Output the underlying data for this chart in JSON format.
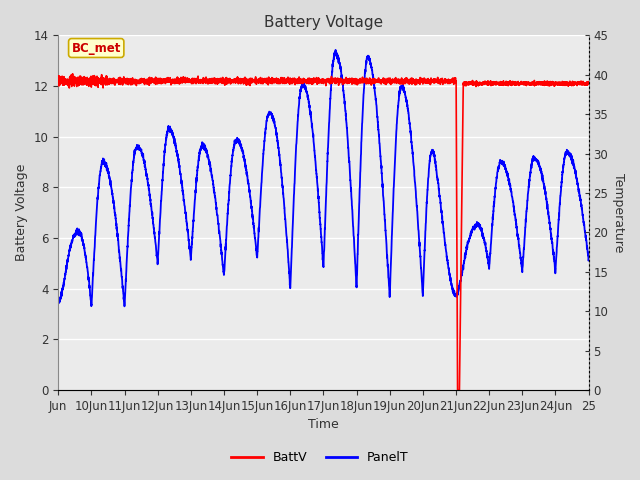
{
  "title": "Battery Voltage",
  "xlabel": "Time",
  "ylabel_left": "Battery Voltage",
  "ylabel_right": "Temperature",
  "xlim": [
    9,
    25
  ],
  "ylim_left": [
    0,
    14
  ],
  "ylim_right": [
    0,
    45
  ],
  "yticks_left": [
    0,
    2,
    4,
    6,
    8,
    10,
    12,
    14
  ],
  "yticks_right": [
    0,
    5,
    10,
    15,
    20,
    25,
    30,
    35,
    40,
    45
  ],
  "xtick_labels": [
    "Jun",
    "10Jun",
    "11Jun",
    "12Jun",
    "13Jun",
    "14Jun",
    "15Jun",
    "16Jun",
    "17Jun",
    "18Jun",
    "19Jun",
    "20Jun",
    "21Jun",
    "22Jun",
    "23Jun",
    "24Jun",
    "25"
  ],
  "xtick_positions": [
    9,
    10,
    11,
    12,
    13,
    14,
    15,
    16,
    17,
    18,
    19,
    20,
    21,
    22,
    23,
    24,
    25
  ],
  "bg_color": "#dcdcdc",
  "plot_bg_color": "#ebebeb",
  "annotation_text": "BC_met",
  "annotation_color": "#cc0000",
  "annotation_bg": "#ffffcc",
  "annotation_border": "#ccaa00",
  "batt_color": "#ff0000",
  "panel_color": "#0000ff",
  "grid_color": "#ffffff",
  "figsize": [
    6.4,
    4.8
  ],
  "dpi": 100
}
